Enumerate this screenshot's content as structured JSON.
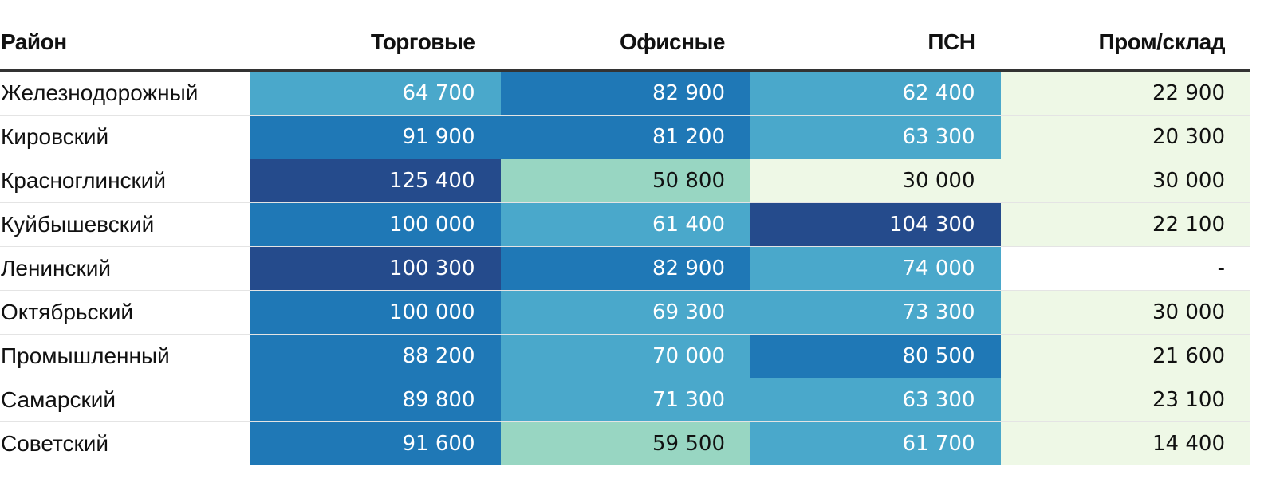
{
  "chart_data": {
    "type": "table",
    "title": "",
    "columns": [
      "Район",
      "Торговые",
      "Офисные",
      "ПСН",
      "Пром/склад"
    ],
    "rows": [
      {
        "district": "Железнодорожный",
        "values": [
          "64 700",
          "82 900",
          "62 400",
          "22 900"
        ],
        "numeric": [
          64700,
          82900,
          62400,
          22900
        ]
      },
      {
        "district": "Кировский",
        "values": [
          "91 900",
          "81 200",
          "63 300",
          "20 300"
        ],
        "numeric": [
          91900,
          81200,
          63300,
          20300
        ]
      },
      {
        "district": "Красноглинский",
        "values": [
          "125 400",
          "50 800",
          "30 000",
          "30 000"
        ],
        "numeric": [
          125400,
          50800,
          30000,
          30000
        ]
      },
      {
        "district": "Куйбышевский",
        "values": [
          "100 000",
          "61 400",
          "104 300",
          "22 100"
        ],
        "numeric": [
          100000,
          61400,
          104300,
          22100
        ]
      },
      {
        "district": "Ленинский",
        "values": [
          "100 300",
          "82 900",
          "74 000",
          "-"
        ],
        "numeric": [
          100300,
          82900,
          74000,
          null
        ]
      },
      {
        "district": "Октябрьский",
        "values": [
          "100 000",
          "69 300",
          "73 300",
          "30 000"
        ],
        "numeric": [
          100000,
          69300,
          73300,
          30000
        ]
      },
      {
        "district": "Промышленный",
        "values": [
          "88 200",
          "70 000",
          "80 500",
          "21 600"
        ],
        "numeric": [
          88200,
          70000,
          80500,
          21600
        ]
      },
      {
        "district": "Самарский",
        "values": [
          "89 800",
          "71 300",
          "63 300",
          "23 100"
        ],
        "numeric": [
          89800,
          71300,
          63300,
          23100
        ]
      },
      {
        "district": "Советский",
        "values": [
          "91 600",
          "59 500",
          "61 700",
          "14 400"
        ],
        "numeric": [
          91600,
          59500,
          61700,
          14400
        ]
      }
    ],
    "color_scale": [
      {
        "max": 45000,
        "color": "#eef8e6",
        "text": "#111111"
      },
      {
        "max": 60000,
        "color": "#98d6c2",
        "text": "#111111"
      },
      {
        "max": 80000,
        "color": "#4aa8cb",
        "text": "#ffffff"
      },
      {
        "max": 100000,
        "color": "#1f78b6",
        "text": "#ffffff"
      },
      {
        "max": 1000000,
        "color": "#254b8c",
        "text": "#ffffff"
      }
    ],
    "empty_color": "#ffffff"
  }
}
